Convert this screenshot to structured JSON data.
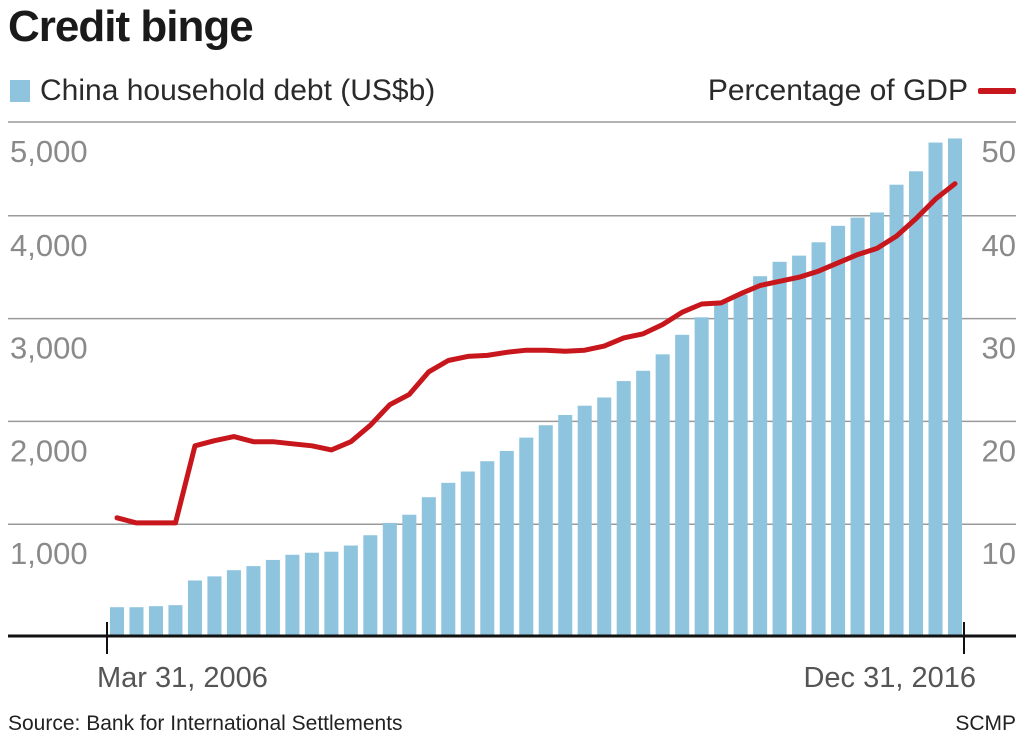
{
  "title": "Credit binge",
  "legend": {
    "bars_label": "China household debt (US$b)",
    "line_label": "Percentage of GDP"
  },
  "footer": {
    "source": "Source: Bank for International Settlements",
    "credit": "SCMP"
  },
  "colors": {
    "bars": "#8ec4de",
    "line": "#c8161d",
    "grid": "#9a9a9a",
    "axis": "#111111"
  },
  "chart_data": {
    "type": "bar",
    "title": "Credit binge",
    "x_start_label": "Mar 31, 2006",
    "x_end_label": "Dec 31, 2016",
    "left_axis": {
      "ylim": [
        0,
        5000
      ],
      "ticks": [
        "1,000",
        "2,000",
        "3,000",
        "4,000",
        "5,000"
      ]
    },
    "right_axis": {
      "ylim": [
        0,
        50
      ],
      "ticks": [
        "10",
        "20",
        "30",
        "40",
        "50"
      ]
    },
    "series": [
      {
        "name": "China household debt (US$b)",
        "type": "bar",
        "axis": "left",
        "values": [
          280,
          280,
          290,
          300,
          540,
          580,
          640,
          680,
          740,
          790,
          810,
          820,
          880,
          980,
          1100,
          1180,
          1350,
          1490,
          1600,
          1700,
          1800,
          1930,
          2050,
          2150,
          2240,
          2320,
          2480,
          2580,
          2740,
          2930,
          3100,
          3240,
          3320,
          3500,
          3640,
          3700,
          3830,
          3990,
          4070,
          4120,
          4390,
          4520,
          4800,
          4840
        ]
      },
      {
        "name": "Percentage of GDP",
        "type": "line",
        "axis": "right",
        "values": [
          11.5,
          11,
          11,
          11,
          18.5,
          19,
          19.4,
          18.9,
          18.9,
          18.7,
          18.5,
          18.1,
          18.9,
          20.5,
          22.5,
          23.5,
          25.7,
          26.8,
          27.2,
          27.3,
          27.6,
          27.8,
          27.8,
          27.7,
          27.8,
          28.2,
          29,
          29.4,
          30.3,
          31.5,
          32.3,
          32.4,
          33.3,
          34.1,
          34.5,
          34.9,
          35.5,
          36.3,
          37.1,
          37.7,
          38.9,
          40.6,
          42.5,
          44
        ]
      }
    ]
  }
}
